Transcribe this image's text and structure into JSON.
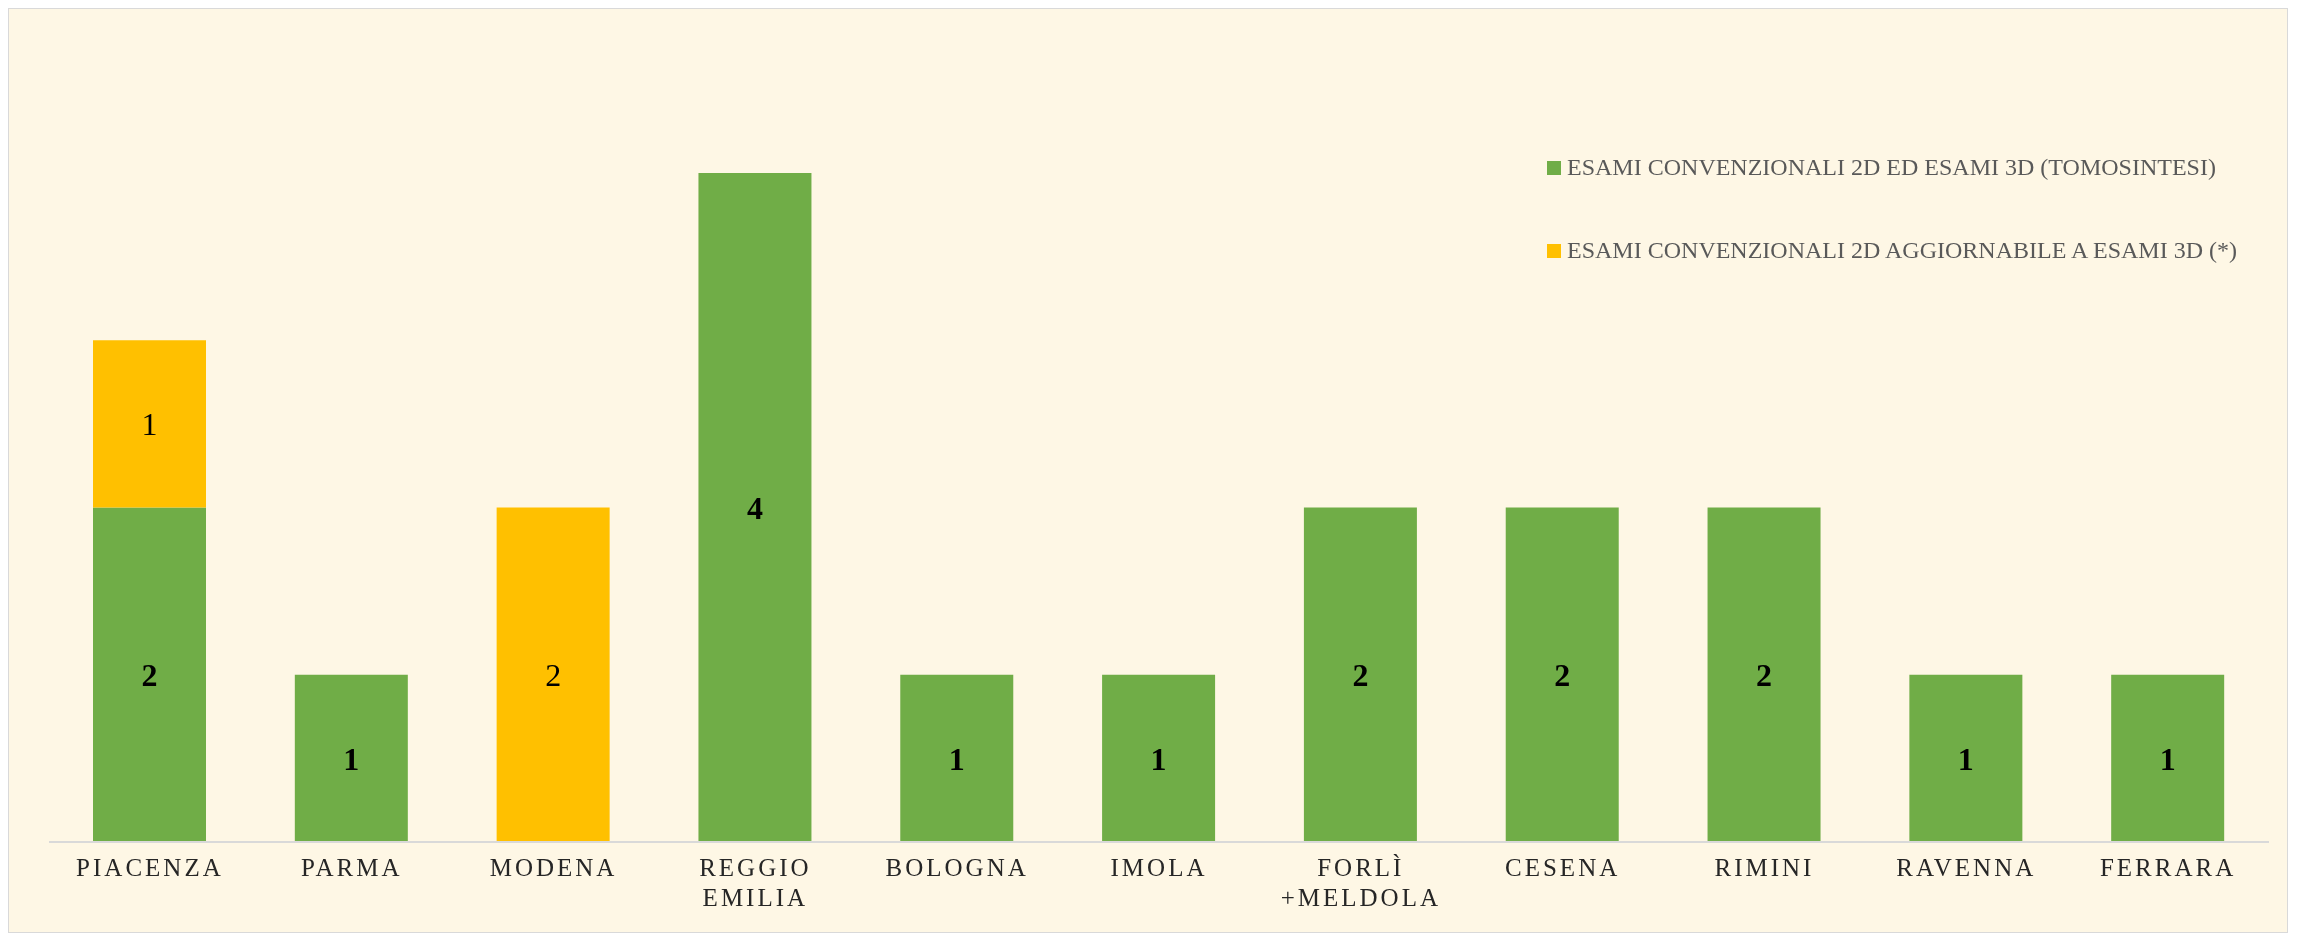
{
  "chart_data": {
    "type": "bar",
    "stacked": true,
    "data_labels": true,
    "legend": "top right",
    "categories": [
      "PIACENZA",
      "PARMA",
      "MODENA",
      "REGGIO EMILIA",
      "BOLOGNA",
      "IMOLA",
      "FORLÌ +MELDOLA",
      "CESENA",
      "RIMINI",
      "RAVENNA",
      "FERRARA"
    ],
    "series": [
      {
        "name": "ESAMI CONVENZIONALI 2D ED ESAMI 3D (TOMOSINTESI)",
        "color": "#70ad47",
        "values": [
          2,
          1,
          null,
          4,
          1,
          1,
          2,
          2,
          2,
          1,
          1
        ]
      },
      {
        "name": "ESAMI CONVENZIONALI 2D AGGIORNABILE A ESAMI 3D (*)",
        "color": "#ffc000",
        "values": [
          1,
          null,
          2,
          null,
          null,
          null,
          null,
          null,
          null,
          null,
          null
        ]
      }
    ]
  }
}
